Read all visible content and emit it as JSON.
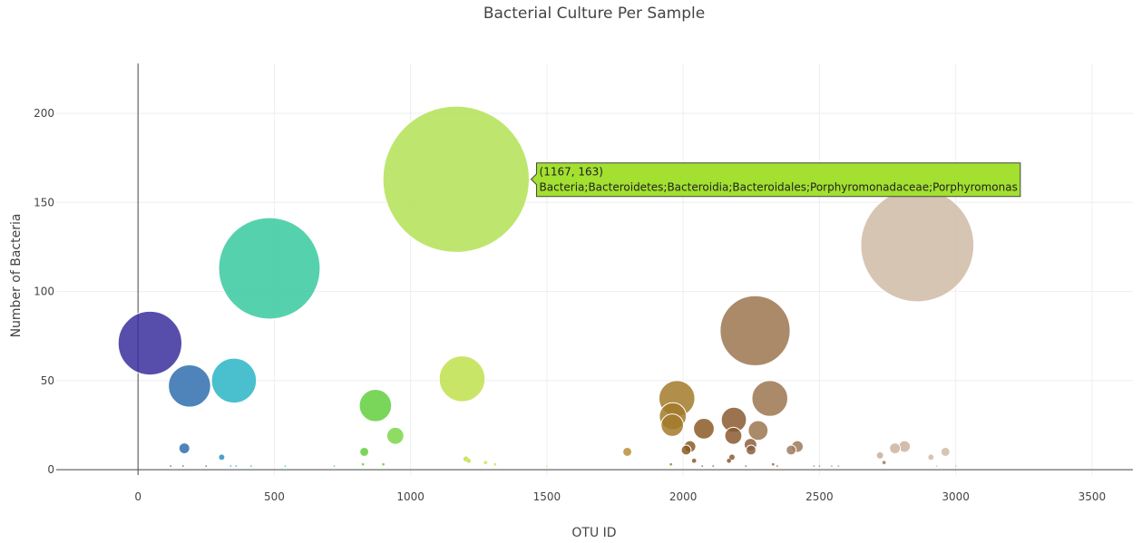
{
  "chart_data": {
    "type": "scatter",
    "title": "Bacterial Culture Per Sample",
    "xlabel": "OTU ID",
    "ylabel": "Number of Bacteria",
    "xlim": [
      -300,
      3650
    ],
    "ylim": [
      -3,
      228
    ],
    "x_ticks": [
      0,
      500,
      1000,
      1500,
      2000,
      2500,
      3000,
      3500
    ],
    "y_ticks": [
      0,
      50,
      100,
      150,
      200
    ],
    "grid": true,
    "legend": "none",
    "marker_size": "proportional to y value",
    "colorscale": "Earth",
    "points": [
      {
        "x": 44,
        "y": 71,
        "color": "#3a2f9c"
      },
      {
        "x": 189,
        "y": 47,
        "color": "#2f6ead"
      },
      {
        "x": 170,
        "y": 12,
        "color": "#2f6ead"
      },
      {
        "x": 307,
        "y": 7,
        "color": "#2f8fc0"
      },
      {
        "x": 352,
        "y": 50,
        "color": "#2ab5c5"
      },
      {
        "x": 482,
        "y": 113,
        "color": "#38c9a0"
      },
      {
        "x": 871,
        "y": 36,
        "color": "#62cf3d"
      },
      {
        "x": 830,
        "y": 10,
        "color": "#62cf3d"
      },
      {
        "x": 944,
        "y": 19,
        "color": "#7bd64a"
      },
      {
        "x": 1167,
        "y": 163,
        "color": "#b3e255"
      },
      {
        "x": 1189,
        "y": 51,
        "color": "#c0e14e"
      },
      {
        "x": 1795,
        "y": 10,
        "color": "#b88f35"
      },
      {
        "x": 1977,
        "y": 40,
        "color": "#a37a2a"
      },
      {
        "x": 1962,
        "y": 30,
        "color": "#a37a2a"
      },
      {
        "x": 1960,
        "y": 25,
        "color": "#a37a2a"
      },
      {
        "x": 2011,
        "y": 11,
        "color": "#8a5b26"
      },
      {
        "x": 2025,
        "y": 13,
        "color": "#8a5b26"
      },
      {
        "x": 2040,
        "y": 5,
        "color": "#8a5b26"
      },
      {
        "x": 2076,
        "y": 23,
        "color": "#8a5b26"
      },
      {
        "x": 2186,
        "y": 28,
        "color": "#8a5b30"
      },
      {
        "x": 2184,
        "y": 19,
        "color": "#8a5b30"
      },
      {
        "x": 2179,
        "y": 7,
        "color": "#8a5b30"
      },
      {
        "x": 2168,
        "y": 5,
        "color": "#8a5b30"
      },
      {
        "x": 2247,
        "y": 14,
        "color": "#8c5f3b"
      },
      {
        "x": 2249,
        "y": 11,
        "color": "#8c5f3b"
      },
      {
        "x": 2264,
        "y": 78,
        "color": "#9c7550"
      },
      {
        "x": 2275,
        "y": 22,
        "color": "#9c7550"
      },
      {
        "x": 2318,
        "y": 40,
        "color": "#9c7550"
      },
      {
        "x": 2396,
        "y": 11,
        "color": "#a07a5a"
      },
      {
        "x": 2419,
        "y": 13,
        "color": "#a07a5a"
      },
      {
        "x": 2722,
        "y": 8,
        "color": "#c8ae98"
      },
      {
        "x": 2737,
        "y": 4,
        "color": "#a0765a"
      },
      {
        "x": 2777,
        "y": 12,
        "color": "#cbb3a0"
      },
      {
        "x": 2812,
        "y": 13,
        "color": "#cbb3a0"
      },
      {
        "x": 2859,
        "y": 126,
        "color": "#d0bba6"
      },
      {
        "x": 2909,
        "y": 7,
        "color": "#d0bba6"
      },
      {
        "x": 2962,
        "y": 10,
        "color": "#d0bba6"
      },
      {
        "x": 1203,
        "y": 6,
        "color": "#c0e14e"
      },
      {
        "x": 1213,
        "y": 5,
        "color": "#c0e14e"
      },
      {
        "x": 1275,
        "y": 4,
        "color": "#d4e050"
      },
      {
        "x": 1310,
        "y": 3,
        "color": "#d4e050"
      },
      {
        "x": 1500,
        "y": 2,
        "color": "#d8d86a"
      },
      {
        "x": 900,
        "y": 3,
        "color": "#62cf3d"
      },
      {
        "x": 825,
        "y": 3,
        "color": "#62cf3d"
      },
      {
        "x": 120,
        "y": 2,
        "color": "#2f6ead"
      },
      {
        "x": 165,
        "y": 2,
        "color": "#2f6ead"
      },
      {
        "x": 250,
        "y": 2,
        "color": "#2f6ead"
      },
      {
        "x": 340,
        "y": 2,
        "color": "#2ab5c5"
      },
      {
        "x": 360,
        "y": 2,
        "color": "#2ab5c5"
      },
      {
        "x": 415,
        "y": 2,
        "color": "#2ab5c5"
      },
      {
        "x": 540,
        "y": 2,
        "color": "#38c9a0"
      },
      {
        "x": 720,
        "y": 2,
        "color": "#50cc80"
      },
      {
        "x": 1955,
        "y": 3,
        "color": "#a37a2a"
      },
      {
        "x": 2070,
        "y": 2,
        "color": "#8a5b26"
      },
      {
        "x": 2110,
        "y": 2,
        "color": "#8a5b26"
      },
      {
        "x": 2230,
        "y": 2,
        "color": "#8c5f3b"
      },
      {
        "x": 2330,
        "y": 3,
        "color": "#8c5f3b"
      },
      {
        "x": 2345,
        "y": 2,
        "color": "#8c5f3b"
      },
      {
        "x": 2480,
        "y": 2,
        "color": "#a88468"
      },
      {
        "x": 2500,
        "y": 2,
        "color": "#a88468"
      },
      {
        "x": 2545,
        "y": 2,
        "color": "#b09078"
      },
      {
        "x": 2570,
        "y": 2,
        "color": "#b09078"
      },
      {
        "x": 2930,
        "y": 2,
        "color": "#d0bba6"
      },
      {
        "x": 3000,
        "y": 2,
        "color": "#d0bba6"
      }
    ],
    "annotations": [
      {
        "point": "(1167, 163)",
        "text": "Bacteria;Bacteroidetes;Bacteroidia;Bacteroidales;Porphyromonadaceae;Porphyromonas",
        "x": 1167,
        "y": 163,
        "color": "#a3e030"
      }
    ]
  }
}
